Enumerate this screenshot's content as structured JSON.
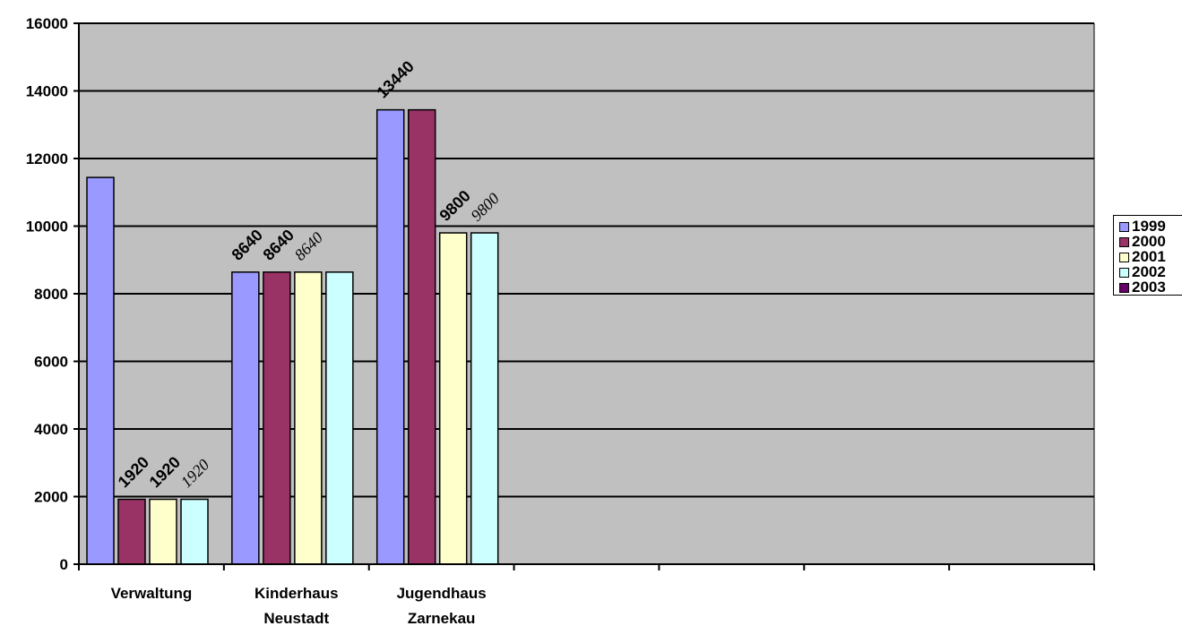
{
  "chart_data": {
    "type": "bar",
    "categories": [
      "Verwaltung",
      "Kinderhaus Neustadt",
      "Jugendhaus Zarnekau",
      "",
      "",
      "",
      ""
    ],
    "series": [
      {
        "name": "1999",
        "color": "#9999ff",
        "values": [
          11440,
          8640,
          13440,
          null,
          null,
          null,
          null
        ]
      },
      {
        "name": "2000",
        "color": "#993366",
        "values": [
          1920,
          8640,
          13440,
          null,
          null,
          null,
          null
        ]
      },
      {
        "name": "2001",
        "color": "#ffffcc",
        "values": [
          1920,
          8640,
          9800,
          null,
          null,
          null,
          null
        ]
      },
      {
        "name": "2002",
        "color": "#ccffff",
        "values": [
          1920,
          8640,
          9800,
          null,
          null,
          null,
          null
        ]
      },
      {
        "name": "2003",
        "color": "#660066",
        "values": [
          null,
          null,
          null,
          null,
          null,
          null,
          null
        ]
      }
    ],
    "data_labels": [
      {
        "category": 0,
        "series": 1,
        "text": "1920"
      },
      {
        "category": 0,
        "series": 2,
        "text": "1920"
      },
      {
        "category": 0,
        "series": 3,
        "text": "1920",
        "style": "serif"
      },
      {
        "category": 1,
        "series": 0,
        "text": "8640"
      },
      {
        "category": 1,
        "series": 1,
        "text": "8640"
      },
      {
        "category": 1,
        "series": 2,
        "text": "8640",
        "style": "serif"
      },
      {
        "category": 2,
        "series": 0,
        "text": "13440"
      },
      {
        "category": 2,
        "series": 2,
        "text": "9800"
      },
      {
        "category": 2,
        "series": 3,
        "text": "9800",
        "style": "serif"
      }
    ],
    "yticks": [
      "0",
      "2000",
      "4000",
      "6000",
      "8000",
      "10000",
      "12000",
      "14000",
      "16000"
    ],
    "ylim": [
      0,
      16000
    ],
    "grid": true,
    "plot_background": "#c0c0c0",
    "legend_position": "right"
  }
}
